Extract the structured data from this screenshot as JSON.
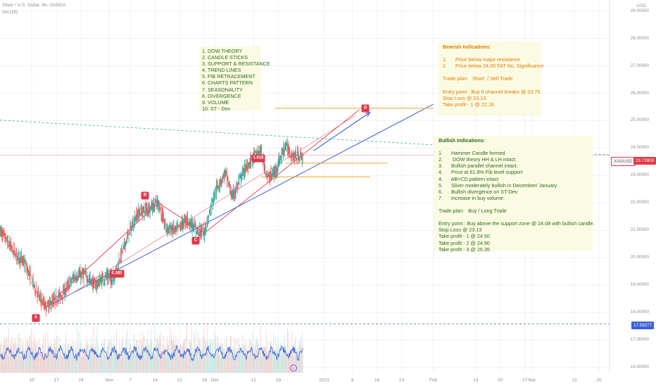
{
  "header": {
    "symbol_line": "Silver / U.S. Dollar, 4h, OANDA",
    "volume_line": "Vol (20)"
  },
  "currency": "USD",
  "price_tags": {
    "symbol": "XAGUSD",
    "current": "23.73900",
    "lower_line": "17.59277"
  },
  "box_list": [
    "1. DOW THEORY",
    "2. CANDLE STICKS",
    "3. SUPPORT & RESISTANCE",
    "4. TREND LINES",
    "5. FIB RETRACEMENT",
    "6. CHARTS PATTERN",
    "7. SEASONALITY",
    "8. DIVERGENCE",
    "9. VOLUME",
    "10. ST - Dev"
  ],
  "box_bearish": [
    "Bearish Indications:",
    "",
    "1.      Price below major resistance",
    "2       Price below 24.00 FAT No. Significance",
    "",
    "Trade plan:   Short  / Sell Trade",
    "",
    "Entry point : Buy if channel breaks @ 23.75",
    "Stop Loss @ 23.13",
    "Take profit - 1 @ 22.18"
  ],
  "box_bullish": [
    "Bullish Indications:",
    "",
    "1.      Hammer Candle formed",
    "2.       DOW theory HH & LH intact.",
    "3.      Bullish parallel channel intact.",
    "4.      Price at 61.8% Fib level support",
    "4.      AB=CD pattern intact",
    "5.      Sliver moderately bullish in December/ January",
    "6.      Bullish divergence on ST-Dev",
    "7.      Increase in buy volume.",
    "",
    "Trade plan:   Buy / Long Trade",
    "",
    "Entry point : Buy above the support zone @ 24.08 with bullish candle.",
    "Stop Loss @ 23.13",
    "Take profit - 1 @ 24.50",
    "Take profit - 2 @ 24.90",
    "Take profit - 3 @ 25.35"
  ],
  "markers": {
    "A": "A",
    "B": "B",
    "C": "C",
    "D": "D",
    "fib": "0.382",
    "fib2": "1.618"
  },
  "colors": {
    "up": "#26a69a",
    "down": "#ef5350",
    "trend": "#e0394a",
    "channel": "#3d5fd9",
    "support": "#f0a030",
    "dashed": "#2bb5a7",
    "stdev": "#3d6bd9"
  },
  "chart_data": {
    "type": "candlestick",
    "title": "Silver / U.S. Dollar, 4h, OANDA",
    "y_ticks": [
      29,
      28,
      27,
      26,
      25,
      24,
      23,
      22,
      21,
      20,
      19,
      18,
      17,
      16
    ],
    "y_tick_labels": [
      "29.00000",
      "28.00000",
      "27.00000",
      "26.00000",
      "25.00000",
      "24.00000",
      "23.00000",
      "22.00000",
      "21.00000",
      "20.00000",
      "19.00000",
      "18.00000",
      "17.00000",
      "16.00000"
    ],
    "ylim": [
      15.8,
      29.4
    ],
    "x_tick_labels": [
      "10",
      "17",
      "24",
      "Nov",
      "7",
      "14",
      "21",
      "28",
      "Dec",
      "12",
      "19",
      "2023",
      "9",
      "16",
      "23",
      "Feb",
      "13",
      "20",
      "27",
      "Mar",
      "13",
      "20"
    ],
    "x_tick_dates": [
      "2022-10-10",
      "2022-10-17",
      "2022-10-24",
      "2022-11-01",
      "2022-11-07",
      "2022-11-14",
      "2022-11-21",
      "2022-11-28",
      "2022-12-01",
      "2022-12-12",
      "2022-12-19",
      "2023-01-01",
      "2023-01-09",
      "2023-01-16",
      "2023-01-23",
      "2023-02-01",
      "2023-02-13",
      "2023-02-20",
      "2023-02-27",
      "2023-03-01",
      "2023-03-13",
      "2023-03-20"
    ],
    "xlim": [
      "2022-10-01",
      "2023-03-23"
    ],
    "price_path": [
      {
        "date": "2022-10-01",
        "price": 21.0
      },
      {
        "date": "2022-10-05",
        "price": 20.2
      },
      {
        "date": "2022-10-08",
        "price": 19.8
      },
      {
        "date": "2022-10-12",
        "price": 18.6
      },
      {
        "date": "2022-10-14",
        "price": 18.2
      },
      {
        "date": "2022-10-17",
        "price": 18.5
      },
      {
        "date": "2022-10-19",
        "price": 18.7
      },
      {
        "date": "2022-10-22",
        "price": 19.3
      },
      {
        "date": "2022-10-25",
        "price": 19.4
      },
      {
        "date": "2022-10-28",
        "price": 19.0
      },
      {
        "date": "2022-10-31",
        "price": 19.3
      },
      {
        "date": "2022-11-02",
        "price": 19.2
      },
      {
        "date": "2022-11-04",
        "price": 20.0
      },
      {
        "date": "2022-11-07",
        "price": 21.0
      },
      {
        "date": "2022-11-09",
        "price": 21.6
      },
      {
        "date": "2022-11-12",
        "price": 21.8
      },
      {
        "date": "2022-11-15",
        "price": 22.0
      },
      {
        "date": "2022-11-17",
        "price": 21.1
      },
      {
        "date": "2022-11-20",
        "price": 21.0
      },
      {
        "date": "2022-11-23",
        "price": 21.4
      },
      {
        "date": "2022-11-26",
        "price": 21.0
      },
      {
        "date": "2022-11-28",
        "price": 20.9
      },
      {
        "date": "2022-12-01",
        "price": 22.4
      },
      {
        "date": "2022-12-04",
        "price": 23.1
      },
      {
        "date": "2022-12-06",
        "price": 22.2
      },
      {
        "date": "2022-12-09",
        "price": 23.1
      },
      {
        "date": "2022-12-12",
        "price": 23.7
      },
      {
        "date": "2022-12-14",
        "price": 23.9
      },
      {
        "date": "2022-12-16",
        "price": 22.9
      },
      {
        "date": "2022-12-18",
        "price": 23.1
      },
      {
        "date": "2022-12-21",
        "price": 24.1
      },
      {
        "date": "2022-12-23",
        "price": 23.7
      },
      {
        "date": "2022-12-26",
        "price": 23.7
      }
    ],
    "volume": [
      0.45,
      0.6,
      0.5,
      0.3,
      0.55,
      0.4,
      0.7,
      0.5,
      0.65,
      0.35,
      0.5,
      0.6,
      0.45,
      0.55,
      0.7,
      0.4,
      0.5,
      0.3,
      0.6,
      0.5,
      0.45,
      0.65,
      0.55,
      0.4,
      0.5,
      0.6,
      0.35,
      0.75,
      0.5,
      0.45,
      0.6,
      0.4,
      0.55,
      0.5,
      0.65,
      0.35,
      0.5,
      0.6,
      0.45,
      0.5,
      0.7,
      0.4,
      0.55,
      0.6,
      0.5,
      0.45,
      0.65,
      0.5,
      0.4,
      0.6,
      0.55,
      0.5,
      0.35,
      0.6,
      0.5,
      0.7,
      0.45,
      0.55,
      0.5,
      0.6,
      0.4,
      0.65,
      0.5,
      0.55,
      0.45,
      0.6,
      0.5,
      0.4,
      0.55,
      0.5,
      0.6,
      0.45,
      0.5,
      0.65,
      0.55,
      0.4,
      0.5,
      0.6,
      0.45,
      0.55,
      0.5,
      0.7,
      0.4,
      0.6,
      0.5,
      0.45,
      0.55,
      0.6,
      0.5,
      0.4,
      0.65,
      0.5,
      0.55,
      0.45,
      0.6,
      0.5,
      0.55,
      0.4,
      0.6,
      0.5,
      0.45,
      0.55,
      0.5,
      0.6
    ],
    "horizontal_lines": [
      {
        "y": 23.739,
        "label": "XAGUSD 23.73900",
        "color": "#e0394a"
      },
      {
        "y": 17.59277,
        "label": "17.59277",
        "color": "#3d5fd9",
        "dashed": true
      }
    ],
    "pattern_points": {
      "A": {
        "date": "2022-10-14",
        "price": 18.2
      },
      "B": {
        "date": "2022-11-15",
        "price": 22.0
      },
      "C": {
        "date": "2022-11-28",
        "price": 20.9
      },
      "D": {
        "date": "2023-01-11",
        "price": 25.4
      }
    }
  }
}
